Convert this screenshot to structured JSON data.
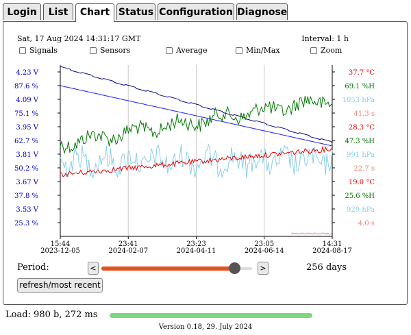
{
  "tabs": [
    {
      "label": "Login",
      "active": false
    },
    {
      "label": "List",
      "active": false
    },
    {
      "label": "Chart",
      "active": true
    },
    {
      "label": "Status",
      "active": false
    },
    {
      "label": "Configuration",
      "active": false
    },
    {
      "label": "Diagnose",
      "active": false
    }
  ],
  "header": {
    "datetime": "Sat, 17 Aug 2024 14:31:17 GMT",
    "interval": "Interval: 1 h"
  },
  "options": [
    {
      "label": "Signals",
      "checked": false
    },
    {
      "label": "Sensors",
      "checked": false
    },
    {
      "label": "Average",
      "checked": false
    },
    {
      "label": "Min/Max",
      "checked": false
    },
    {
      "label": "Zoom",
      "checked": false
    }
  ],
  "chart_data": {
    "type": "line",
    "left_axis_labels": [
      {
        "text": "4.23 V",
        "color": "#0000cc"
      },
      {
        "text": "87.6 %",
        "color": "#0000cc"
      },
      {
        "text": "4.09 V",
        "color": "#0000cc"
      },
      {
        "text": "75.1 %",
        "color": "#0000cc"
      },
      {
        "text": "3.95 V",
        "color": "#0000cc"
      },
      {
        "text": "62.7 %",
        "color": "#0000cc"
      },
      {
        "text": "3.81 V",
        "color": "#0000cc"
      },
      {
        "text": "50.2 %",
        "color": "#0000cc"
      },
      {
        "text": "3.67 V",
        "color": "#0000cc"
      },
      {
        "text": "37.8 %",
        "color": "#0000cc"
      },
      {
        "text": "3.53 V",
        "color": "#0000cc"
      },
      {
        "text": "25.3 %",
        "color": "#0000cc"
      }
    ],
    "right_axis_labels": [
      {
        "text": "37.7 °C",
        "color": "#ee0000"
      },
      {
        "text": "69.1 %H",
        "color": "#007700"
      },
      {
        "text": "1053 hPa",
        "color": "#87ceeb"
      },
      {
        "text": "41.3 s",
        "color": "#f08070"
      },
      {
        "text": "28.3 °C",
        "color": "#ee0000"
      },
      {
        "text": "47.3 %H",
        "color": "#007700"
      },
      {
        "text": "991 hPa",
        "color": "#87ceeb"
      },
      {
        "text": "22.7 s",
        "color": "#f08070"
      },
      {
        "text": "19.0 °C",
        "color": "#ee0000"
      },
      {
        "text": "25.6 %H",
        "color": "#007700"
      },
      {
        "text": "929 hPa",
        "color": "#87ceeb"
      },
      {
        "text": "4.0 s",
        "color": "#f08070"
      }
    ],
    "x_ticks": [
      {
        "time": "15:44",
        "date": "2023-12-05"
      },
      {
        "time": "23:41",
        "date": "2024-02-07"
      },
      {
        "time": "23:23",
        "date": "2024-04-11"
      },
      {
        "time": "23:05",
        "date": "2024-06-14"
      },
      {
        "time": "14:31",
        "date": "2024-08-17"
      }
    ],
    "grid": true,
    "series": [
      {
        "name": "",
        "color": "#000080"
      },
      {
        "name": "",
        "color": "#1a1aff"
      },
      {
        "name": "",
        "color": "#007700"
      },
      {
        "name": "",
        "color": "#87ceeb"
      },
      {
        "name": "",
        "color": "#ee0000"
      },
      {
        "name": "",
        "color": "#f08070"
      }
    ]
  },
  "period": {
    "label": "Period:",
    "value_text": "256 days",
    "dec_label": "<",
    "inc_label": ">",
    "slider_fraction": 0.88
  },
  "refresh_label": "refresh/most recent",
  "footer": {
    "load": "Load: 980 b, 272 ms",
    "version": "Version 0.18, 29. July 2024",
    "load_fraction": 1.0
  }
}
